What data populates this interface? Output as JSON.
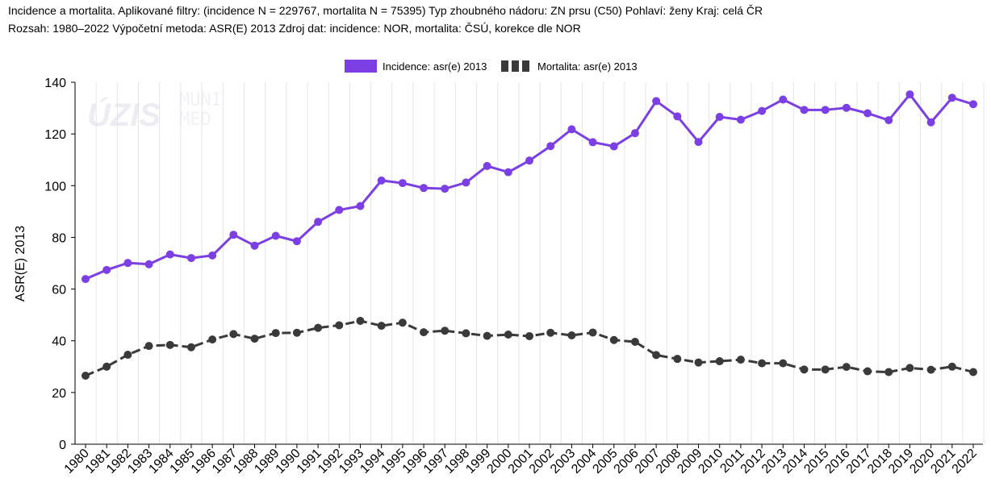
{
  "header": {
    "line1": "Incidence a mortalita. Aplikované filtry: (incidence N = 229767, mortalita N = 75395) Typ zhoubného nádoru: ZN prsu (C50) Pohlaví: ženy Kraj: celá ČR",
    "line2": "Rozsah: 1980–2022 Výpočetní metoda: ASR(E) 2013 Zdroj dat: incidence: NOR, mortalita: ČSÚ, korekce dle NOR"
  },
  "watermark": {
    "logo1": "ÚZIS",
    "logo2_line1": "MUNI",
    "logo2_line2": "MED"
  },
  "colors": {
    "incidence": "#7b3fe4",
    "mortality": "#3a3a3a",
    "grid": "#e4e4e4",
    "axis": "#000000"
  },
  "chart_data": {
    "type": "line",
    "ylabel": "ASR(E) 2013",
    "xlabel": "",
    "ylim": [
      0,
      140
    ],
    "yticks": [
      0,
      20,
      40,
      60,
      80,
      100,
      120,
      140
    ],
    "grid": "vertical",
    "legend_position": "top-center",
    "categories": [
      "1980",
      "1981",
      "1982",
      "1983",
      "1984",
      "1985",
      "1986",
      "1987",
      "1988",
      "1989",
      "1990",
      "1991",
      "1992",
      "1993",
      "1994",
      "1995",
      "1996",
      "1997",
      "1998",
      "1999",
      "2000",
      "2001",
      "2002",
      "2003",
      "2004",
      "2005",
      "2006",
      "2007",
      "2008",
      "2009",
      "2010",
      "2011",
      "2012",
      "2013",
      "2014",
      "2015",
      "2016",
      "2017",
      "2018",
      "2019",
      "2020",
      "2021",
      "2022"
    ],
    "series": [
      {
        "name": "Incidence: asr(e) 2013",
        "style": "solid",
        "values": [
          63.9,
          67.4,
          70.1,
          69.6,
          73.4,
          72.0,
          73.0,
          81.0,
          76.8,
          80.6,
          78.5,
          86.0,
          90.6,
          92.1,
          102.0,
          101.0,
          99.1,
          98.8,
          101.2,
          107.6,
          105.2,
          109.7,
          115.3,
          121.8,
          116.8,
          115.2,
          120.3,
          132.7,
          126.8,
          116.9,
          126.6,
          125.5,
          128.9,
          133.3,
          129.3,
          129.3,
          130.1,
          128.0,
          125.3,
          135.3,
          124.5,
          134.0,
          131.5
        ]
      },
      {
        "name": "Mortalita: asr(e) 2013",
        "style": "dashed",
        "values": [
          26.5,
          30.0,
          34.6,
          38.0,
          38.4,
          37.5,
          40.5,
          42.6,
          40.8,
          43.0,
          43.1,
          45.0,
          46.0,
          47.7,
          45.8,
          47.0,
          43.3,
          43.9,
          42.9,
          41.9,
          42.4,
          41.8,
          43.1,
          42.1,
          43.2,
          40.3,
          39.6,
          34.5,
          33.0,
          31.6,
          32.1,
          32.7,
          31.3,
          31.3,
          28.9,
          28.9,
          29.9,
          28.2,
          27.9,
          29.5,
          28.8,
          30.0,
          27.9
        ]
      }
    ]
  }
}
